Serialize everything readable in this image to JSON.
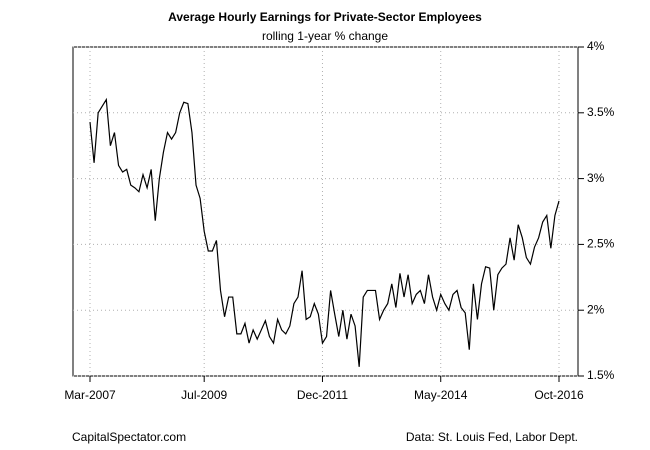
{
  "chart_data": {
    "type": "line",
    "title": "Average Hourly Earnings for Private-Sector Employees",
    "subtitle": "rolling 1-year % change",
    "source_left": "CapitalSpectator.com",
    "source_right": "Data: St. Louis Fed, Labor Dept.",
    "categories": [
      "Mar-2007",
      null,
      null,
      null,
      null,
      null,
      null,
      null,
      null,
      null,
      null,
      null,
      null,
      null,
      null,
      null,
      null,
      null,
      null,
      null,
      null,
      null,
      null,
      null,
      null,
      null,
      null,
      null,
      "Jul-2009",
      null,
      null,
      null,
      null,
      null,
      null,
      null,
      null,
      null,
      null,
      null,
      null,
      null,
      null,
      null,
      null,
      null,
      null,
      null,
      null,
      null,
      null,
      null,
      null,
      null,
      null,
      null,
      null,
      "Dec-2011",
      null,
      null,
      null,
      null,
      null,
      null,
      null,
      null,
      null,
      null,
      null,
      null,
      null,
      null,
      null,
      null,
      null,
      null,
      null,
      null,
      null,
      null,
      null,
      null,
      null,
      null,
      null,
      null,
      "May-2014",
      null,
      null,
      null,
      null,
      null,
      null,
      null,
      null,
      null,
      null,
      null,
      null,
      null,
      null,
      null,
      null,
      null,
      null,
      null,
      null,
      null,
      null,
      null,
      null,
      null,
      null,
      null,
      null,
      "Oct-2016"
    ],
    "series": [
      {
        "color": "#000000",
        "values": [
          3.43,
          3.12,
          3.5,
          3.55,
          3.6,
          3.25,
          3.35,
          3.1,
          3.05,
          3.07,
          2.95,
          2.93,
          2.9,
          3.03,
          2.93,
          3.07,
          2.68,
          3.0,
          3.2,
          3.35,
          3.3,
          3.35,
          3.5,
          3.58,
          3.57,
          3.35,
          2.95,
          2.85,
          2.6,
          2.45,
          2.45,
          2.53,
          2.15,
          1.95,
          2.1,
          2.1,
          1.82,
          1.82,
          1.9,
          1.75,
          1.85,
          1.78,
          1.85,
          1.92,
          1.8,
          1.75,
          1.93,
          1.85,
          1.82,
          1.88,
          2.05,
          2.1,
          2.3,
          1.93,
          1.95,
          2.05,
          1.97,
          1.75,
          1.8,
          2.15,
          1.97,
          1.8,
          2.0,
          1.78,
          1.97,
          1.88,
          1.57,
          2.1,
          2.15,
          2.15,
          2.15,
          1.93,
          2.0,
          2.05,
          2.2,
          2.02,
          2.28,
          2.1,
          2.27,
          2.05,
          2.12,
          2.15,
          2.05,
          2.27,
          2.1,
          2.0,
          2.12,
          2.05,
          2.0,
          2.12,
          2.15,
          2.02,
          1.98,
          1.7,
          2.2,
          1.93,
          2.2,
          2.33,
          2.32,
          2.0,
          2.27,
          2.32,
          2.35,
          2.55,
          2.38,
          2.65,
          2.55,
          2.4,
          2.35,
          2.48,
          2.55,
          2.67,
          2.72,
          2.47,
          2.72,
          2.83
        ]
      }
    ],
    "ylim": [
      1.5,
      4
    ],
    "yticks": [
      {
        "value": 1.5,
        "label": "1.5%"
      },
      {
        "value": 2,
        "label": "2%"
      },
      {
        "value": 2.5,
        "label": "2.5%"
      },
      {
        "value": 3,
        "label": "3%"
      },
      {
        "value": 3.5,
        "label": "3.5%"
      },
      {
        "value": 4,
        "label": "4%"
      }
    ],
    "grid": true
  }
}
